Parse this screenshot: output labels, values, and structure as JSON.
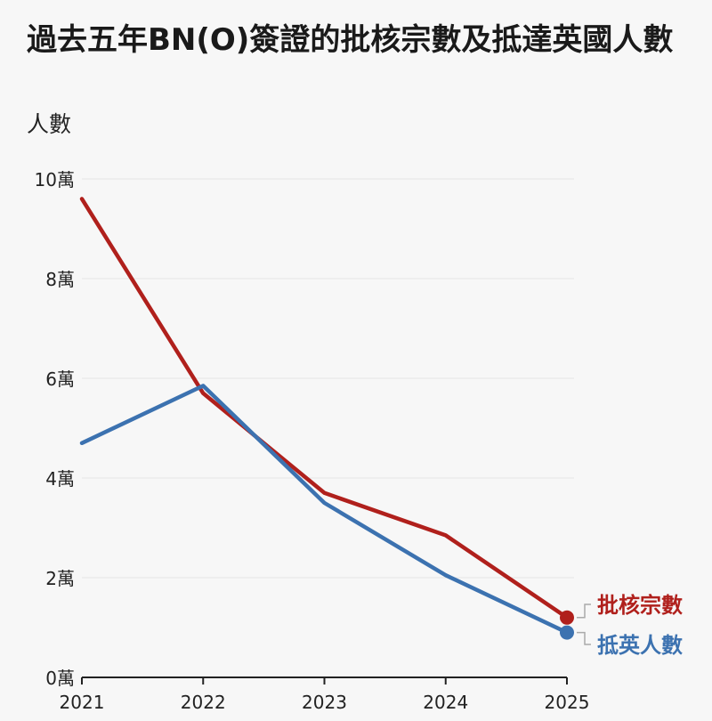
{
  "chart_data": {
    "type": "line",
    "title": "過去五年BN(O)簽證的批核宗數及抵達英國人數",
    "ylabel": "人數",
    "xlabel": "",
    "x": [
      "2021",
      "2022",
      "2023",
      "2024",
      "2025"
    ],
    "y_ticks": [
      0,
      2,
      4,
      6,
      8,
      10
    ],
    "y_tick_labels": [
      "0萬",
      "2萬",
      "4萬",
      "6萬",
      "8萬",
      "10萬"
    ],
    "ylim": [
      0,
      10
    ],
    "y_unit": "萬",
    "grid": true,
    "series": [
      {
        "name": "批核宗數",
        "color": "#b0201c",
        "values": [
          9.6,
          5.7,
          3.7,
          2.85,
          1.2
        ]
      },
      {
        "name": "抵英人數",
        "color": "#3c72b0",
        "values": [
          4.7,
          5.85,
          3.5,
          2.05,
          0.9
        ]
      }
    ]
  }
}
